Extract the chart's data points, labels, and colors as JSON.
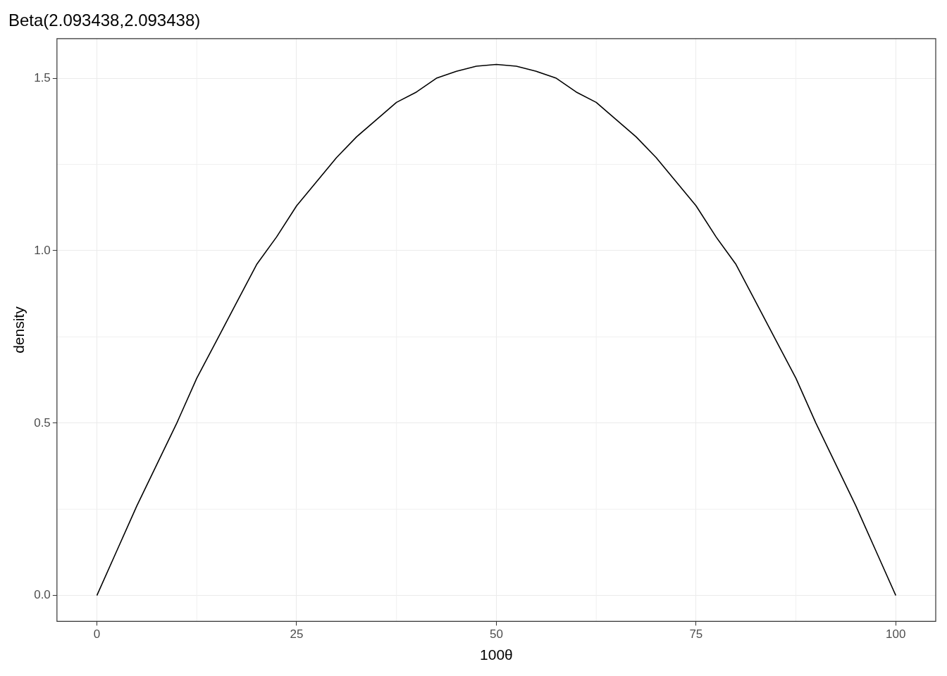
{
  "chart_data": {
    "type": "line",
    "title": "Beta(2.093438,2.093438)",
    "xlabel": "100θ",
    "ylabel": "density",
    "x": [
      0,
      2.5,
      5,
      7.5,
      10,
      12.5,
      15,
      17.5,
      20,
      22.5,
      25,
      27.5,
      30,
      32.5,
      35,
      37.5,
      40,
      42.5,
      45,
      47.5,
      50,
      52.5,
      55,
      57.5,
      60,
      62.5,
      65,
      67.5,
      70,
      72.5,
      75,
      77.5,
      80,
      82.5,
      85,
      87.5,
      90,
      92.5,
      95,
      97.5,
      100
    ],
    "series": [
      {
        "color": "#000000",
        "values": [
          0,
          0.13,
          0.26,
          0.38,
          0.5,
          0.63,
          0.74,
          0.85,
          0.96,
          1.04,
          1.13,
          1.2,
          1.27,
          1.33,
          1.38,
          1.43,
          1.46,
          1.5,
          1.52,
          1.535,
          1.54,
          1.535,
          1.52,
          1.5,
          1.46,
          1.43,
          1.38,
          1.33,
          1.27,
          1.2,
          1.13,
          1.04,
          0.96,
          0.85,
          0.74,
          0.63,
          0.5,
          0.38,
          0.26,
          0.13,
          0
        ]
      }
    ],
    "xlim": [
      -5,
      105
    ],
    "ylim": [
      -0.075,
      1.615
    ],
    "xticks": [
      0,
      25,
      50,
      75,
      100
    ],
    "yticks": [
      {
        "value": 0,
        "label": "0.0"
      },
      {
        "value": 0.5,
        "label": "0.5"
      },
      {
        "value": 1,
        "label": "1.0"
      },
      {
        "value": 1.5,
        "label": "1.5"
      }
    ],
    "grid": true,
    "legend": false,
    "marker": "none",
    "line_style": "solid"
  }
}
